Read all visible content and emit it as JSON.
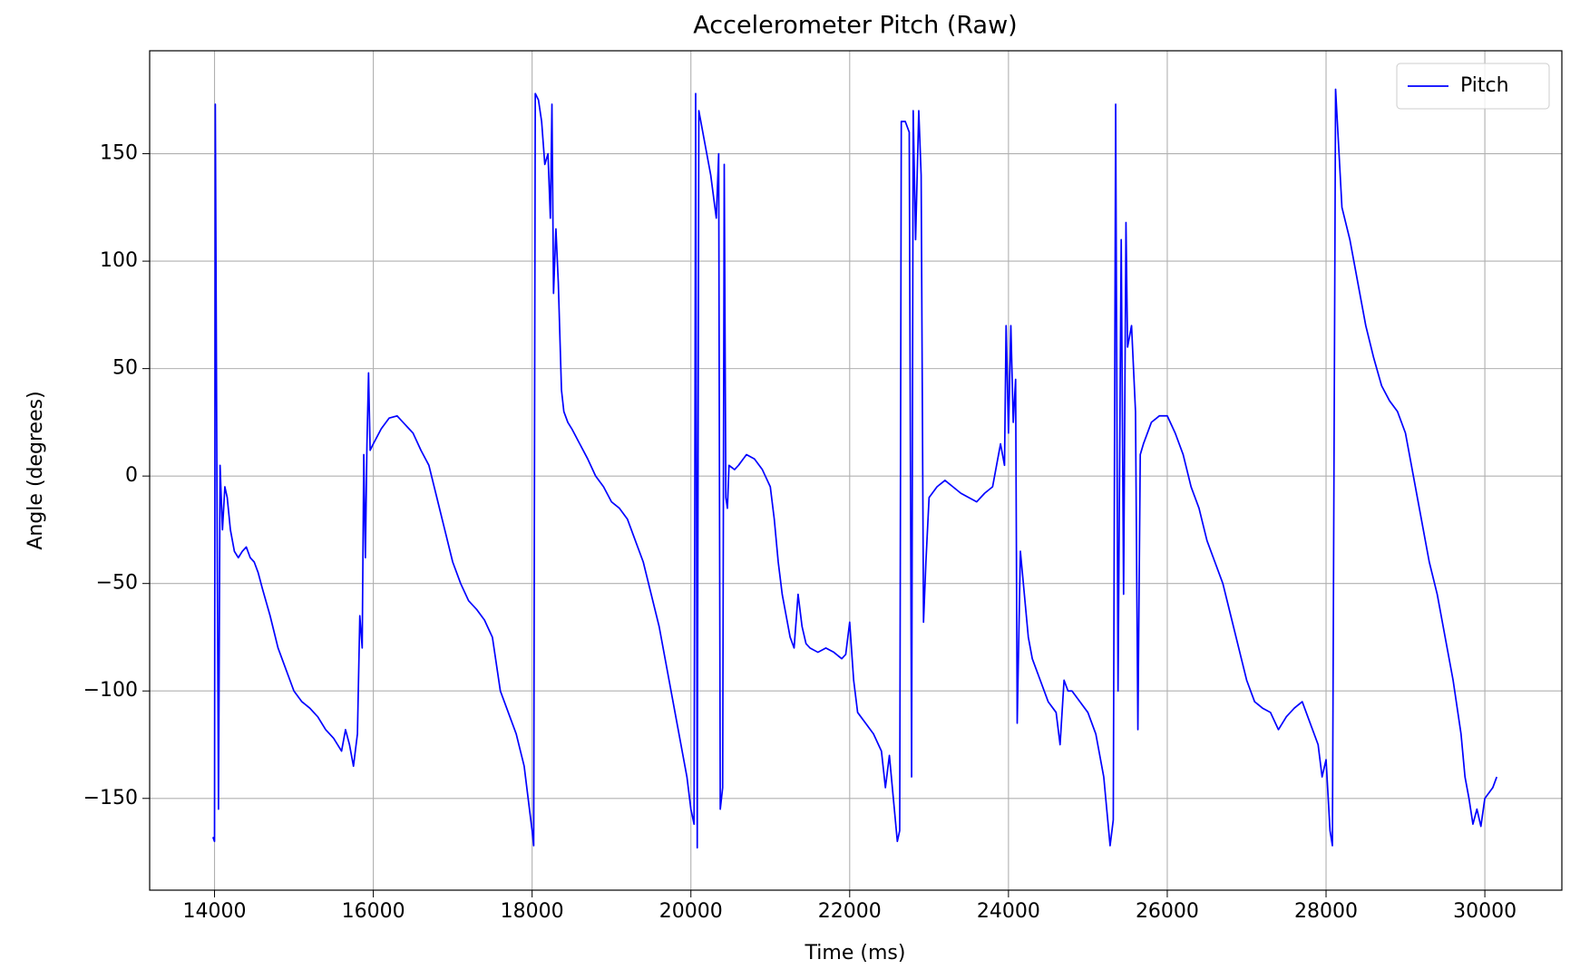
{
  "chart_data": {
    "type": "line",
    "title": "Accelerometer Pitch (Raw)",
    "xlabel": "Time (ms)",
    "ylabel": "Angle (degrees)",
    "x": [
      13980,
      14000,
      14010,
      14030,
      14050,
      14070,
      14100,
      14130,
      14160,
      14200,
      14250,
      14300,
      14350,
      14400,
      14450,
      14500,
      14550,
      14600,
      14700,
      14800,
      14900,
      15000,
      15100,
      15200,
      15300,
      15400,
      15500,
      15600,
      15650,
      15700,
      15750,
      15800,
      15830,
      15860,
      15880,
      15900,
      15920,
      15940,
      15960,
      16000,
      16100,
      16200,
      16300,
      16400,
      16500,
      16600,
      16700,
      16800,
      16900,
      17000,
      17100,
      17200,
      17300,
      17400,
      17500,
      17600,
      17700,
      17800,
      17900,
      17950,
      18000,
      18020,
      18040,
      18080,
      18120,
      18160,
      18200,
      18230,
      18250,
      18270,
      18300,
      18330,
      18370,
      18400,
      18450,
      18500,
      18600,
      18700,
      18800,
      18900,
      19000,
      19100,
      19200,
      19300,
      19400,
      19500,
      19600,
      19700,
      19800,
      19900,
      19950,
      20000,
      20040,
      20060,
      20080,
      20100,
      20150,
      20250,
      20320,
      20350,
      20370,
      20400,
      20420,
      20440,
      20460,
      20480,
      20550,
      20600,
      20700,
      20800,
      20900,
      21000,
      21050,
      21100,
      21150,
      21200,
      21250,
      21300,
      21350,
      21400,
      21450,
      21500,
      21600,
      21700,
      21800,
      21900,
      21950,
      22000,
      22050,
      22100,
      22200,
      22300,
      22400,
      22450,
      22500,
      22550,
      22600,
      22630,
      22650,
      22700,
      22750,
      22780,
      22800,
      22830,
      22870,
      22900,
      22930,
      22960,
      23000,
      23100,
      23200,
      23300,
      23400,
      23500,
      23600,
      23700,
      23800,
      23850,
      23900,
      23950,
      23970,
      24000,
      24030,
      24060,
      24090,
      24110,
      24150,
      24200,
      24250,
      24300,
      24400,
      24500,
      24600,
      24650,
      24700,
      24750,
      24800,
      24900,
      25000,
      25100,
      25200,
      25280,
      25320,
      25350,
      25380,
      25420,
      25450,
      25480,
      25500,
      25550,
      25600,
      25630,
      25660,
      25700,
      25800,
      25900,
      26000,
      26100,
      26200,
      26300,
      26400,
      26500,
      26600,
      26700,
      26800,
      26900,
      27000,
      27100,
      27200,
      27300,
      27400,
      27500,
      27600,
      27700,
      27800,
      27900,
      27950,
      28000,
      28050,
      28080,
      28120,
      28200,
      28300,
      28400,
      28500,
      28600,
      28700,
      28800,
      28900,
      29000,
      29100,
      29200,
      29300,
      29400,
      29500,
      29600,
      29700,
      29750,
      29800,
      29850,
      29900,
      29950,
      30000,
      30100,
      30150
    ],
    "series": [
      {
        "name": "Pitch",
        "color": "#0000ff",
        "values": [
          -168,
          -170,
          173,
          0,
          -155,
          5,
          -25,
          -5,
          -10,
          -25,
          -35,
          -38,
          -35,
          -33,
          -38,
          -40,
          -45,
          -52,
          -65,
          -80,
          -90,
          -100,
          -105,
          -108,
          -112,
          -118,
          -122,
          -128,
          -118,
          -125,
          -135,
          -120,
          -65,
          -80,
          10,
          -38,
          15,
          48,
          12,
          15,
          22,
          27,
          28,
          24,
          20,
          12,
          5,
          -10,
          -25,
          -40,
          -50,
          -58,
          -62,
          -67,
          -75,
          -100,
          -110,
          -120,
          -135,
          -150,
          -165,
          -172,
          178,
          175,
          165,
          145,
          150,
          120,
          173,
          85,
          115,
          90,
          40,
          30,
          25,
          22,
          15,
          8,
          0,
          -5,
          -12,
          -15,
          -20,
          -30,
          -40,
          -55,
          -70,
          -90,
          -110,
          -130,
          -140,
          -155,
          -162,
          178,
          -173,
          170,
          160,
          140,
          120,
          150,
          -155,
          -145,
          145,
          -10,
          -15,
          5,
          3,
          5,
          10,
          8,
          3,
          -5,
          -20,
          -40,
          -55,
          -65,
          -75,
          -80,
          -55,
          -70,
          -78,
          -80,
          -82,
          -80,
          -82,
          -85,
          -83,
          -68,
          -95,
          -110,
          -115,
          -120,
          -128,
          -145,
          -130,
          -150,
          -170,
          -165,
          165,
          165,
          160,
          -140,
          170,
          110,
          170,
          140,
          -68,
          -40,
          -10,
          -5,
          -2,
          -5,
          -8,
          -10,
          -12,
          -8,
          -5,
          5,
          15,
          5,
          70,
          20,
          70,
          25,
          45,
          -115,
          -35,
          -55,
          -75,
          -85,
          -95,
          -105,
          -110,
          -125,
          -95,
          -100,
          -100,
          -105,
          -110,
          -120,
          -140,
          -172,
          -160,
          173,
          -100,
          110,
          -55,
          118,
          60,
          70,
          30,
          -118,
          10,
          15,
          25,
          28,
          28,
          20,
          10,
          -5,
          -15,
          -30,
          -40,
          -50,
          -65,
          -80,
          -95,
          -105,
          -108,
          -110,
          -118,
          -112,
          -108,
          -105,
          -115,
          -125,
          -140,
          -132,
          -165,
          -172,
          180,
          125,
          110,
          90,
          70,
          55,
          42,
          35,
          30,
          20,
          0,
          -20,
          -40,
          -55,
          -75,
          -95,
          -120,
          -140,
          -150,
          -162,
          -155,
          -163,
          -150,
          -145,
          -140
        ]
      }
    ],
    "xlim": [
      13183,
      30970
    ],
    "xticks": [
      14000,
      16000,
      18000,
      20000,
      22000,
      24000,
      26000,
      28000,
      30000
    ],
    "ylim": [
      -192.7,
      197.9
    ],
    "yticks": [
      {
        "value": -150,
        "label": "−150"
      },
      {
        "value": -100,
        "label": "−100"
      },
      {
        "value": -50,
        "label": "−50"
      },
      0,
      50,
      100,
      150
    ],
    "grid": true,
    "legend": "upper right"
  }
}
